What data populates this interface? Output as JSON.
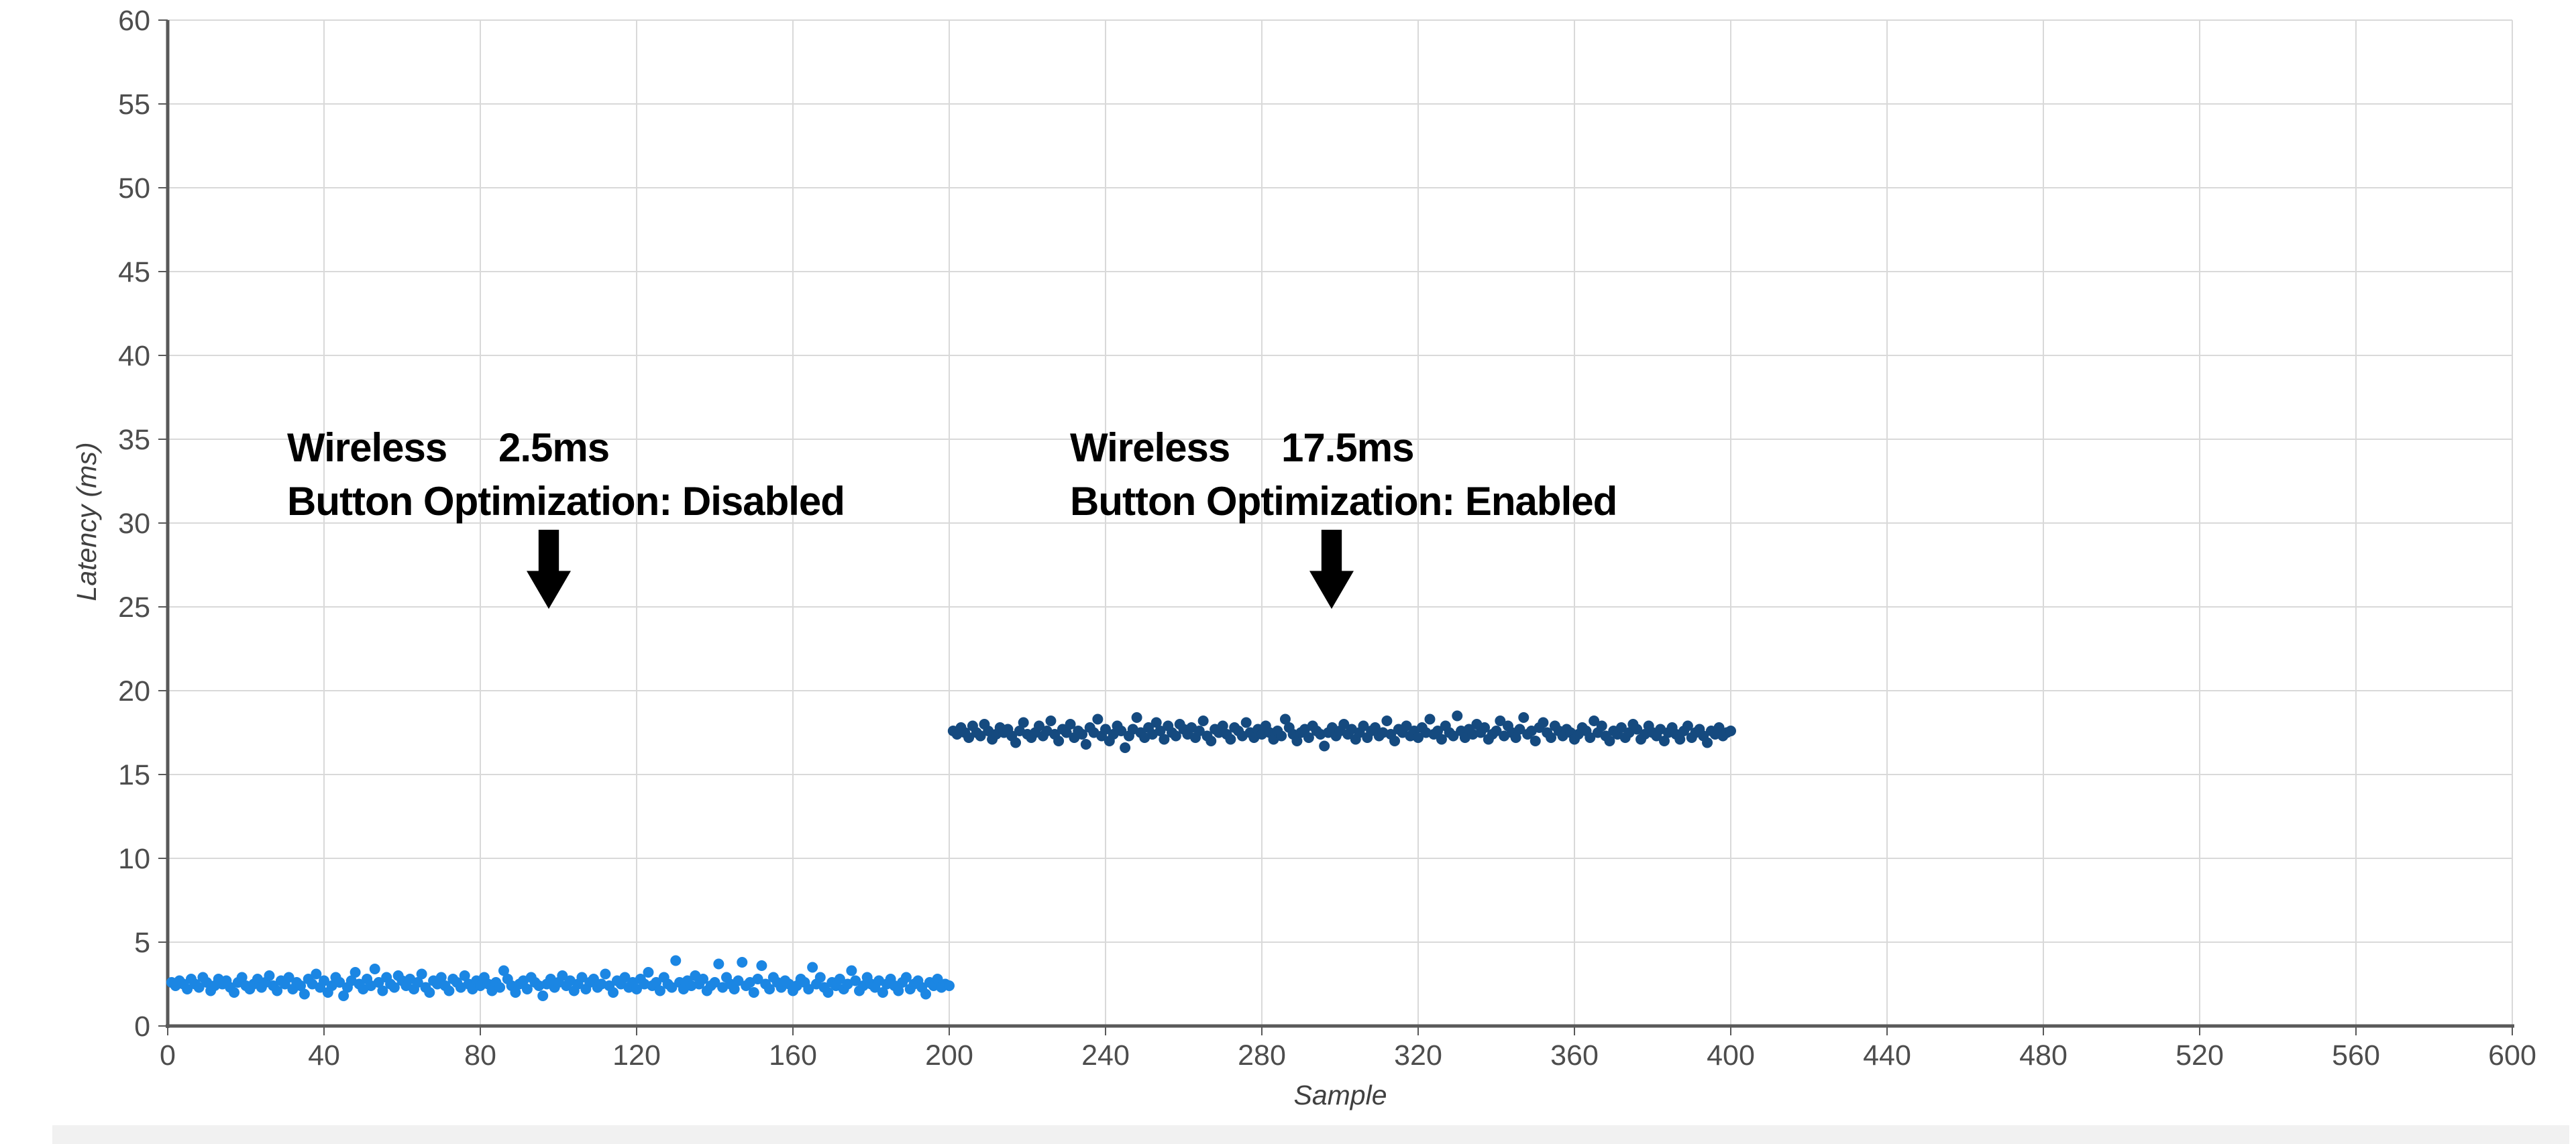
{
  "colors": {
    "series_disabled": "#1b86e3",
    "series_enabled": "#154a7f",
    "gridline": "#d9d9d9",
    "axis": "#595959",
    "tick_label": "#4d4d4d",
    "axis_title": "#404040",
    "annotation_text": "#000000",
    "scrollbar_track": "#f1f1f1"
  },
  "chart_data": {
    "type": "scatter",
    "title": "",
    "xlabel": "Sample",
    "ylabel": "Latency (ms)",
    "xlim": [
      0,
      600
    ],
    "ylim": [
      0,
      60
    ],
    "x_ticks": [
      0,
      40,
      80,
      120,
      160,
      200,
      240,
      280,
      320,
      360,
      400,
      440,
      480,
      520,
      560,
      600
    ],
    "y_ticks": [
      0,
      5,
      10,
      15,
      20,
      25,
      30,
      35,
      40,
      45,
      50,
      55,
      60
    ],
    "grid": true,
    "legend": "none",
    "marker_radius_px": 8,
    "series": [
      {
        "name": "Wireless Button Optimization: Disabled",
        "color": "#1b86e3",
        "x_start": 1,
        "y": [
          2.6,
          2.4,
          2.7,
          2.5,
          2.2,
          2.8,
          2.5,
          2.3,
          2.9,
          2.6,
          2.1,
          2.4,
          2.8,
          2.5,
          2.7,
          2.3,
          2.0,
          2.6,
          2.9,
          2.4,
          2.2,
          2.5,
          2.8,
          2.3,
          2.6,
          3.0,
          2.4,
          2.1,
          2.7,
          2.5,
          2.9,
          2.2,
          2.6,
          2.4,
          1.9,
          2.8,
          2.5,
          3.1,
          2.3,
          2.7,
          2.0,
          2.4,
          2.9,
          2.6,
          1.8,
          2.3,
          2.7,
          3.2,
          2.5,
          2.2,
          2.8,
          2.4,
          3.4,
          2.6,
          2.1,
          2.9,
          2.5,
          2.3,
          3.0,
          2.7,
          2.4,
          2.8,
          2.2,
          2.6,
          3.1,
          2.3,
          2.0,
          2.7,
          2.5,
          2.9,
          2.4,
          2.1,
          2.8,
          2.6,
          2.3,
          3.0,
          2.5,
          2.2,
          2.7,
          2.4,
          2.9,
          2.5,
          2.1,
          2.6,
          2.3,
          3.3,
          2.8,
          2.4,
          2.0,
          2.5,
          2.7,
          2.2,
          2.9,
          2.6,
          2.4,
          1.8,
          2.5,
          2.8,
          2.3,
          2.6,
          3.0,
          2.4,
          2.7,
          2.1,
          2.5,
          2.9,
          2.2,
          2.6,
          2.8,
          2.3,
          2.5,
          3.1,
          2.4,
          2.0,
          2.7,
          2.5,
          2.9,
          2.3,
          2.6,
          2.2,
          2.8,
          2.5,
          3.2,
          2.4,
          2.6,
          2.1,
          2.9,
          2.5,
          2.3,
          3.9,
          2.6,
          2.2,
          2.7,
          2.4,
          3.0,
          2.5,
          2.8,
          2.1,
          2.4,
          2.6,
          3.7,
          2.3,
          2.9,
          2.5,
          2.2,
          2.7,
          3.8,
          2.4,
          2.6,
          2.0,
          2.8,
          3.6,
          2.5,
          2.2,
          2.9,
          2.6,
          2.3,
          2.7,
          2.5,
          2.1,
          2.4,
          2.8,
          2.6,
          2.2,
          3.5,
          2.5,
          2.9,
          2.3,
          2.0,
          2.6,
          2.4,
          2.8,
          2.2,
          2.5,
          3.3,
          2.7,
          2.1,
          2.4,
          2.9,
          2.5,
          2.3,
          2.7,
          2.0,
          2.5,
          2.8,
          2.4,
          2.1,
          2.6,
          2.9,
          2.2,
          2.5,
          2.7,
          2.3,
          1.9,
          2.6,
          2.4,
          2.8,
          2.3,
          2.5,
          2.4
        ]
      },
      {
        "name": "Wireless Button Optimization: Enabled",
        "color": "#154a7f",
        "x_start": 201,
        "y": [
          17.6,
          17.4,
          17.8,
          17.5,
          17.2,
          17.9,
          17.5,
          17.3,
          18.0,
          17.6,
          17.1,
          17.4,
          17.8,
          17.5,
          17.7,
          17.3,
          16.9,
          17.6,
          18.1,
          17.4,
          17.2,
          17.5,
          17.9,
          17.3,
          17.6,
          18.2,
          17.4,
          17.0,
          17.7,
          17.5,
          18.0,
          17.2,
          17.6,
          17.4,
          16.8,
          17.8,
          17.5,
          18.3,
          17.3,
          17.7,
          17.0,
          17.4,
          17.9,
          17.6,
          16.6,
          17.3,
          17.7,
          18.4,
          17.5,
          17.2,
          17.8,
          17.4,
          18.1,
          17.6,
          17.1,
          17.9,
          17.5,
          17.3,
          18.0,
          17.7,
          17.4,
          17.8,
          17.2,
          17.6,
          18.2,
          17.3,
          17.0,
          17.7,
          17.5,
          17.9,
          17.4,
          17.1,
          17.8,
          17.6,
          17.3,
          18.1,
          17.5,
          17.2,
          17.7,
          17.4,
          17.9,
          17.5,
          17.1,
          17.6,
          17.3,
          18.3,
          17.8,
          17.4,
          17.0,
          17.5,
          17.7,
          17.2,
          17.9,
          17.6,
          17.4,
          16.7,
          17.5,
          17.8,
          17.3,
          17.6,
          18.0,
          17.4,
          17.7,
          17.1,
          17.5,
          17.9,
          17.2,
          17.6,
          17.8,
          17.3,
          17.5,
          18.2,
          17.4,
          17.0,
          17.7,
          17.5,
          17.9,
          17.3,
          17.6,
          17.2,
          17.8,
          17.5,
          18.3,
          17.4,
          17.6,
          17.1,
          17.9,
          17.5,
          17.3,
          18.5,
          17.6,
          17.2,
          17.7,
          17.4,
          18.0,
          17.5,
          17.8,
          17.1,
          17.4,
          17.6,
          18.2,
          17.3,
          17.9,
          17.5,
          17.2,
          17.7,
          18.4,
          17.4,
          17.6,
          17.0,
          17.8,
          18.1,
          17.5,
          17.2,
          17.9,
          17.6,
          17.3,
          17.7,
          17.5,
          17.1,
          17.4,
          17.8,
          17.6,
          17.2,
          18.2,
          17.5,
          17.9,
          17.3,
          17.0,
          17.6,
          17.4,
          17.8,
          17.2,
          17.5,
          18.0,
          17.7,
          17.1,
          17.4,
          17.9,
          17.5,
          17.3,
          17.7,
          17.0,
          17.5,
          17.8,
          17.4,
          17.1,
          17.6,
          17.9,
          17.2,
          17.5,
          17.7,
          17.3,
          16.9,
          17.6,
          17.4,
          17.8,
          17.3,
          17.5,
          17.6
        ]
      }
    ],
    "annotations": [
      {
        "line1_left": "Wireless",
        "line1_right": "2.5ms",
        "line2": "Button Optimization: Disabled"
      },
      {
        "line1_left": "Wireless",
        "line1_right": "17.5ms",
        "line2": "Button Optimization: Enabled"
      }
    ]
  }
}
